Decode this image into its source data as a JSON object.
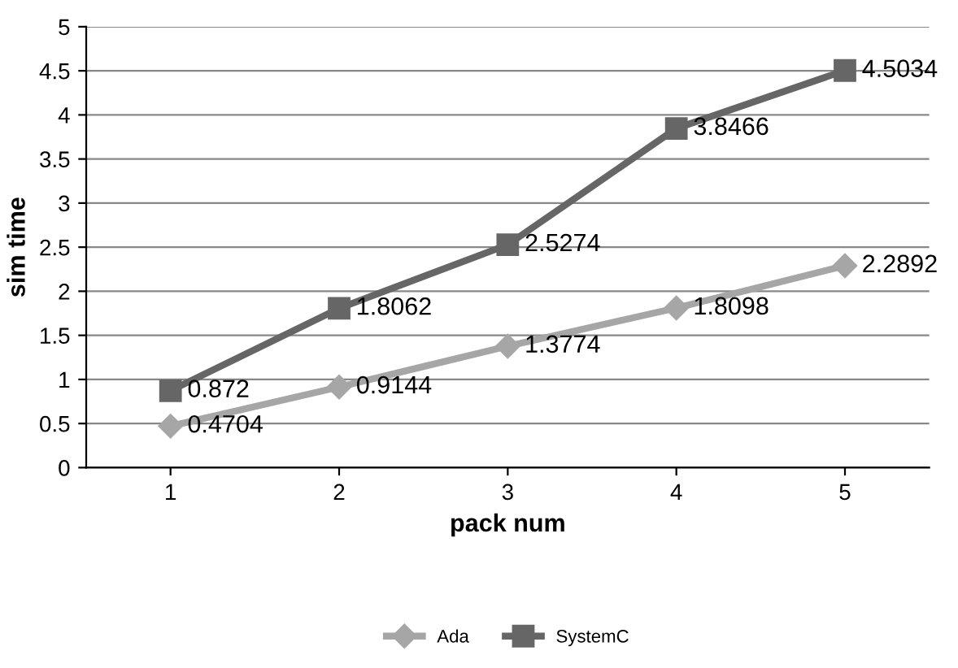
{
  "chart_data": {
    "type": "line",
    "xlabel": "pack num",
    "ylabel": "sim time",
    "categories": [
      "1",
      "2",
      "3",
      "4",
      "5"
    ],
    "series": [
      {
        "name": "Ada",
        "color": "#a6a6a6",
        "marker": "diamond",
        "values": [
          0.4704,
          0.9144,
          1.3774,
          1.8098,
          2.2892
        ]
      },
      {
        "name": "SystemC",
        "color": "#666666",
        "marker": "square",
        "values": [
          0.872,
          1.8062,
          2.5274,
          3.8466,
          4.5034
        ]
      }
    ],
    "ylim": [
      0,
      5
    ],
    "yticks": [
      0,
      0.5,
      1,
      1.5,
      2,
      2.5,
      3,
      3.5,
      4,
      4.5,
      5
    ],
    "grid": "y",
    "legend": "bottom",
    "data_labels": true
  }
}
